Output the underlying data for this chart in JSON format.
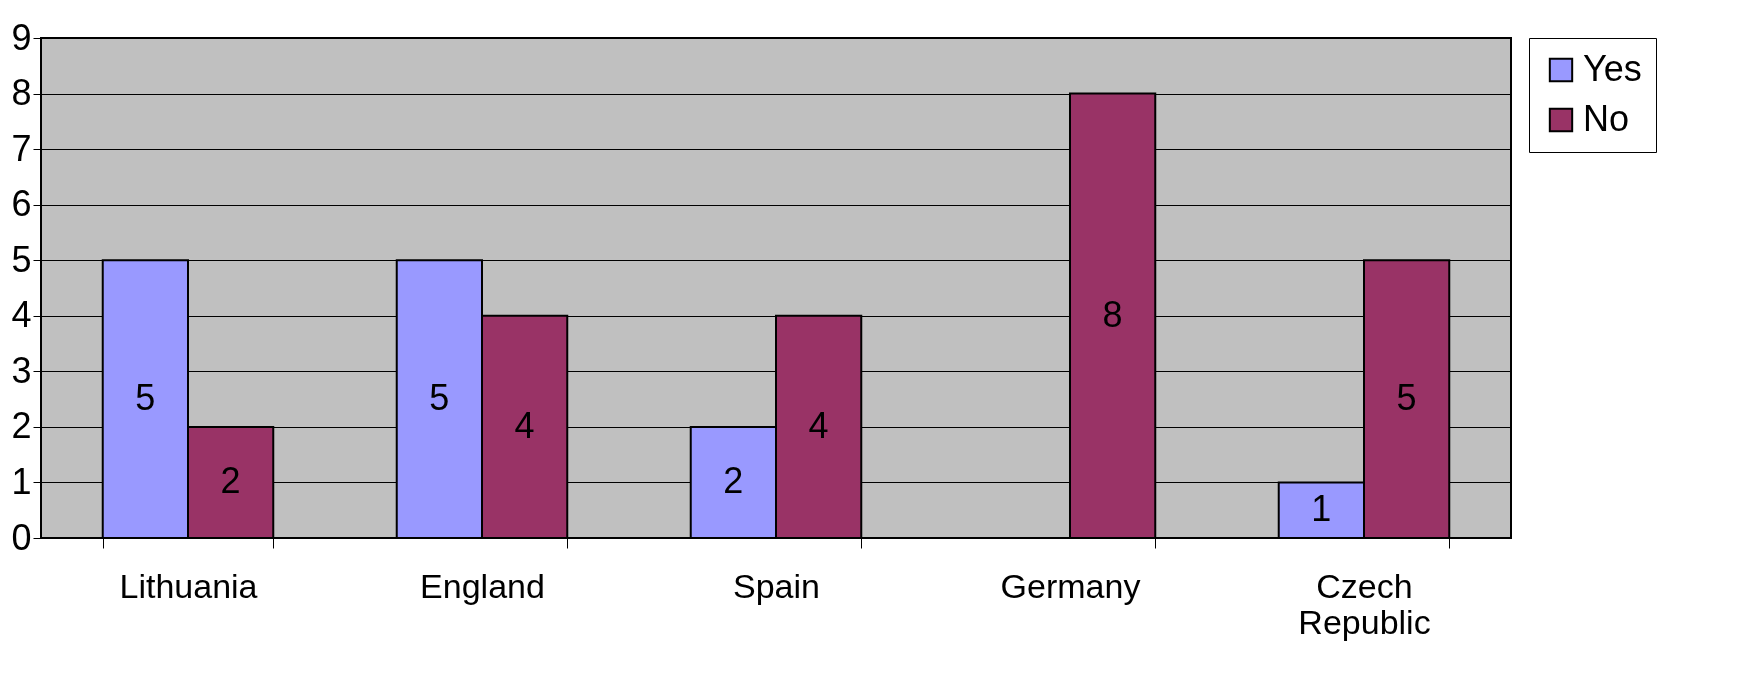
{
  "chart_data": {
    "type": "bar",
    "categories": [
      "Lithuania",
      "England",
      "Spain",
      "Germany",
      "Czech Republic"
    ],
    "series": [
      {
        "name": "Yes",
        "color": "#9999ff",
        "values": [
          5,
          5,
          2,
          null,
          1
        ]
      },
      {
        "name": "No",
        "color": "#993366",
        "values": [
          2,
          4,
          4,
          8,
          5
        ]
      }
    ],
    "ylim": [
      0,
      9
    ],
    "yticks": [
      0,
      1,
      2,
      3,
      4,
      5,
      6,
      7,
      8,
      9
    ],
    "grid": "y",
    "legend": "right",
    "data_labels": true
  }
}
